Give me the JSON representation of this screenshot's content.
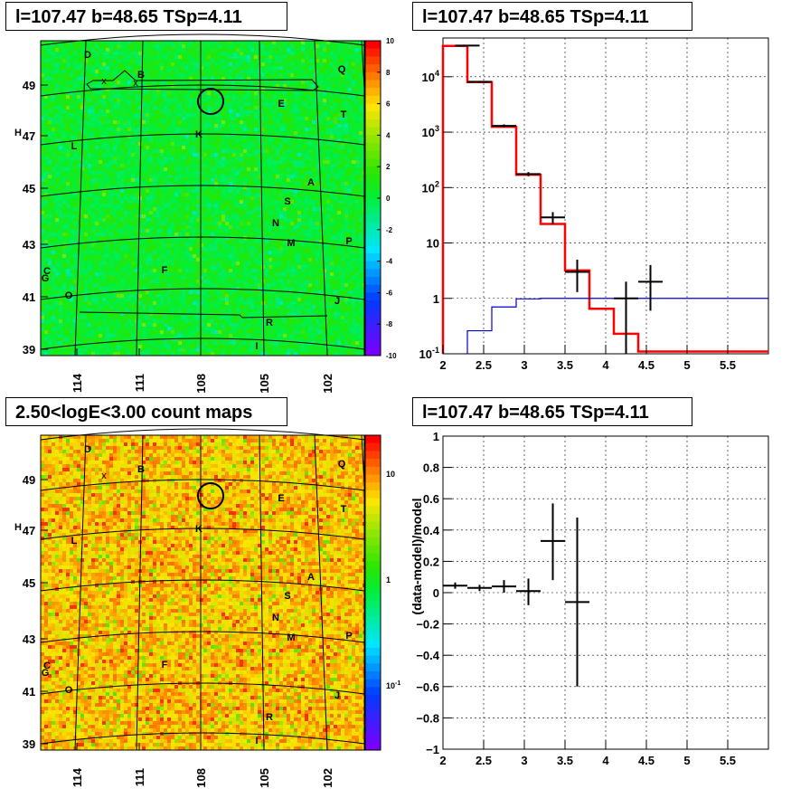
{
  "panels": {
    "tl": {
      "title": "l=107.47 b=48.65 TSp=4.11",
      "x_ticks": [
        "114",
        "111",
        "108",
        "105",
        "102"
      ],
      "y_ticks": [
        "49",
        "47",
        "45",
        "43",
        "41",
        "39"
      ],
      "colorbar_ticks": [
        "10",
        "8",
        "6",
        "4",
        "2",
        "0",
        "-2",
        "-4",
        "-6",
        "-8",
        "-10"
      ],
      "labels": [
        "D",
        "B",
        "Q",
        "E",
        "T",
        "H",
        "K",
        "L",
        "A",
        "S",
        "N",
        "P",
        "M",
        "C",
        "G",
        "F",
        "O",
        "J",
        "R",
        "I",
        "x",
        "x"
      ]
    },
    "tr": {
      "title": "l=107.47 b=48.65 TSp=4.11"
    },
    "bl": {
      "title": "2.50<logE<3.00 count maps",
      "x_ticks": [
        "114",
        "111",
        "108",
        "105",
        "102"
      ],
      "y_ticks": [
        "49",
        "47",
        "45",
        "43",
        "41",
        "39"
      ],
      "colorbar_ticks": [
        "10",
        "1",
        "10-1"
      ],
      "labels": [
        "D",
        "B",
        "Q",
        "E",
        "T",
        "H",
        "K",
        "L",
        "A",
        "S",
        "N",
        "P",
        "M",
        "C",
        "G",
        "F",
        "O",
        "J",
        "R",
        "I",
        "x"
      ]
    },
    "br": {
      "title": "l=107.47 b=48.65 TSp=4.11"
    }
  },
  "chart_data": [
    {
      "type": "heatmap",
      "title": "l=107.47 b=48.65 TSp=4.11",
      "xlabel": "",
      "ylabel": "",
      "x_tick_labels": [
        "114",
        "111",
        "108",
        "105",
        "102"
      ],
      "y_tick_labels": [
        "49",
        "47",
        "45",
        "43",
        "41",
        "39"
      ],
      "colorbar": {
        "range": [
          -10,
          10
        ],
        "ticks": [
          10,
          8,
          6,
          4,
          2,
          0,
          -2,
          -4,
          -6,
          -8,
          -10
        ]
      },
      "source_circle": {
        "l": 107.47,
        "b": 48.65
      }
    },
    {
      "type": "line",
      "title": "l=107.47 b=48.65 TSp=4.11",
      "xlabel": "",
      "ylabel": "",
      "xlim": [
        2,
        6
      ],
      "ylim": [
        0.1,
        50000
      ],
      "log_y": true,
      "grid": true,
      "x_tick_labels": [
        "2",
        "2.5",
        "3",
        "3.5",
        "4",
        "4.5",
        "5",
        "5.5"
      ],
      "y_tick_labels": [
        "10^-1",
        "1",
        "10",
        "10^2",
        "10^3",
        "10^4"
      ],
      "series": [
        {
          "color": "#ff0000",
          "bin_edges": [
            2.0,
            2.3,
            2.6,
            2.9,
            3.2,
            3.5,
            3.8,
            4.1,
            4.4,
            6.0
          ],
          "values": [
            36000,
            8000,
            1250,
            170,
            22,
            3.2,
            0.65,
            0.23,
            0.11
          ]
        },
        {
          "color": "#0000cc",
          "bin_edges": [
            2.3,
            2.6,
            2.9,
            3.2,
            3.5,
            3.8,
            4.1,
            4.4,
            6.0
          ],
          "values": [
            0.26,
            0.7,
            0.98,
            1.0,
            1.0,
            1.0,
            1.0,
            1.0
          ]
        },
        {
          "color": "#000000",
          "points": [
            {
              "x": 2.3,
              "y": 36500,
              "xerr": 0.15,
              "ylo": 35500,
              "yhi": 37500
            },
            {
              "x": 2.45,
              "y": 8100,
              "xerr": 0.15,
              "ylo": 7800,
              "yhi": 8400
            },
            {
              "x": 2.75,
              "y": 1300,
              "xerr": 0.15,
              "ylo": 1220,
              "yhi": 1380
            },
            {
              "x": 3.05,
              "y": 175,
              "xerr": 0.15,
              "ylo": 160,
              "yhi": 190
            },
            {
              "x": 3.35,
              "y": 29,
              "xerr": 0.15,
              "ylo": 22,
              "yhi": 36
            },
            {
              "x": 3.65,
              "y": 3.0,
              "xerr": 0.15,
              "ylo": 1.3,
              "yhi": 5.0
            },
            {
              "x": 4.25,
              "y": 1.0,
              "xerr": 0.15,
              "ylo": 0.1,
              "yhi": 2.0
            },
            {
              "x": 4.55,
              "y": 2.0,
              "xerr": 0.15,
              "ylo": 0.6,
              "yhi": 4.0
            }
          ]
        }
      ]
    },
    {
      "type": "heatmap",
      "title": "2.50<logE<3.00 count maps",
      "xlabel": "",
      "ylabel": "",
      "x_tick_labels": [
        "114",
        "111",
        "108",
        "105",
        "102"
      ],
      "y_tick_labels": [
        "49",
        "47",
        "45",
        "43",
        "41",
        "39"
      ],
      "colorbar": {
        "log": true,
        "ticks": [
          "10",
          "1",
          "10-1"
        ]
      },
      "source_circle": {
        "l": 107.47,
        "b": 48.65
      }
    },
    {
      "type": "scatter",
      "title": "l=107.47 b=48.65 TSp=4.11",
      "xlabel": "",
      "ylabel": "(data-model)/model",
      "xlim": [
        2,
        6
      ],
      "ylim": [
        -1,
        1
      ],
      "grid": true,
      "x_tick_labels": [
        "2",
        "2.5",
        "3",
        "3.5",
        "4",
        "4.5",
        "5",
        "5.5"
      ],
      "y_tick_labels": [
        "1",
        "0.8",
        "0.6",
        "0.4",
        "0.2",
        "0",
        "−0.2",
        "−0.4",
        "−0.6",
        "−0.8",
        "−1"
      ],
      "series": [
        {
          "color": "#000000",
          "points": [
            {
              "x": 2.15,
              "y": 0.045,
              "xerr": 0.15,
              "ylo": 0.025,
              "yhi": 0.065
            },
            {
              "x": 2.45,
              "y": 0.03,
              "xerr": 0.15,
              "ylo": 0.01,
              "yhi": 0.05
            },
            {
              "x": 2.75,
              "y": 0.04,
              "xerr": 0.15,
              "ylo": 0.0,
              "yhi": 0.08
            },
            {
              "x": 3.05,
              "y": 0.01,
              "xerr": 0.15,
              "ylo": -0.08,
              "yhi": 0.09
            },
            {
              "x": 3.35,
              "y": 0.33,
              "xerr": 0.15,
              "ylo": 0.08,
              "yhi": 0.57
            },
            {
              "x": 3.65,
              "y": -0.06,
              "xerr": 0.15,
              "ylo": -0.6,
              "yhi": 0.48
            }
          ]
        }
      ]
    }
  ]
}
